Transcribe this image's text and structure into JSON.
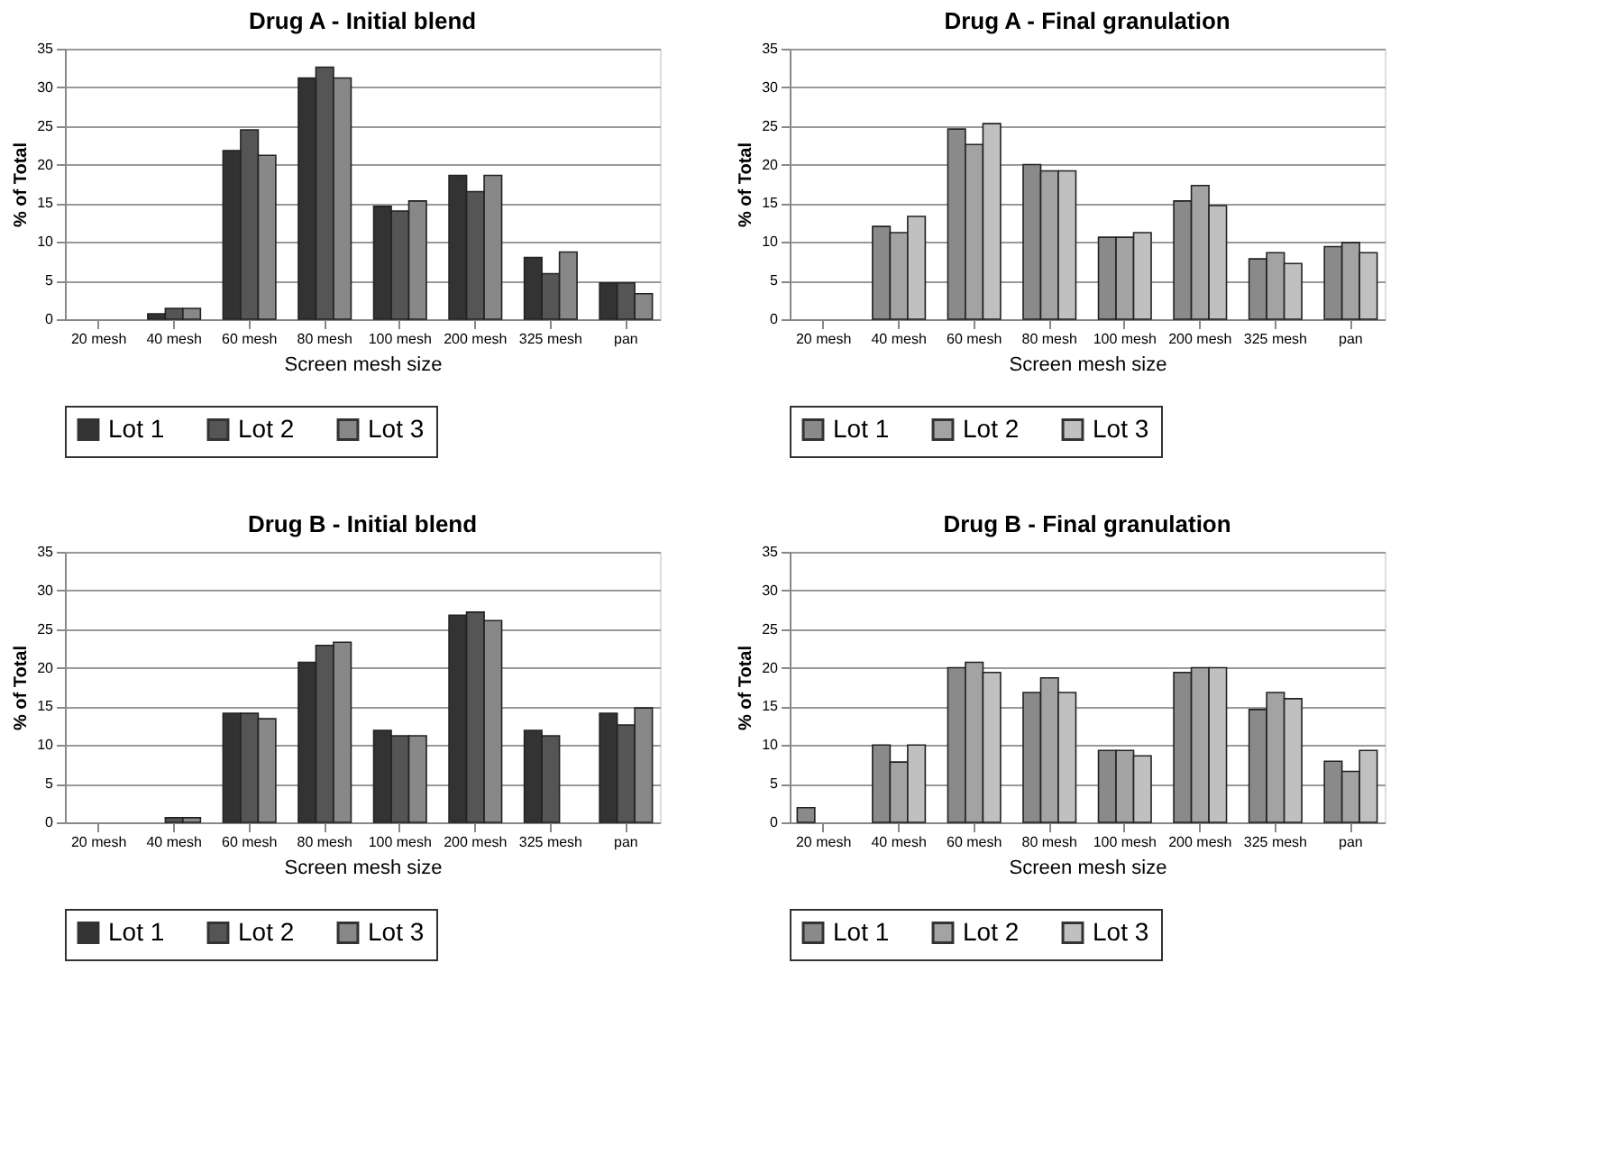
{
  "chart_data": [
    {
      "type": "bar",
      "title": "Drug A - Initial blend",
      "xlabel": "Screen mesh size",
      "ylabel": "% of Total",
      "categories": [
        "20 mesh",
        "40 mesh",
        "60 mesh",
        "80 mesh",
        "100 mesh",
        "200 mesh",
        "325 mesh",
        "pan"
      ],
      "series": [
        {
          "name": "Lot 1",
          "color": "#333333",
          "values": [
            0,
            0.7,
            21.8,
            31.2,
            14.6,
            18.6,
            8.0,
            4.7
          ]
        },
        {
          "name": "Lot 2",
          "color": "#555555",
          "values": [
            0,
            1.4,
            24.5,
            32.6,
            14.0,
            16.5,
            5.9,
            4.7
          ]
        },
        {
          "name": "Lot 3",
          "color": "#888888",
          "values": [
            0,
            1.4,
            21.2,
            31.2,
            15.3,
            18.6,
            8.7,
            3.3
          ]
        }
      ],
      "ylim": [
        0,
        35
      ],
      "yticks": [
        0,
        5,
        10,
        15,
        20,
        25,
        30,
        35
      ],
      "grid": "y",
      "legend": "bottom"
    },
    {
      "type": "bar",
      "title": "Drug A - Final granulation",
      "xlabel": "Screen mesh size",
      "ylabel": "% of Total",
      "categories": [
        "20 mesh",
        "40 mesh",
        "60 mesh",
        "80 mesh",
        "100 mesh",
        "200 mesh",
        "325 mesh",
        "pan"
      ],
      "series": [
        {
          "name": "Lot 1",
          "color": "#8a8a8a",
          "values": [
            0,
            12.0,
            24.6,
            20.0,
            10.6,
            15.3,
            7.8,
            9.4
          ]
        },
        {
          "name": "Lot 2",
          "color": "#a3a3a3",
          "values": [
            0,
            11.2,
            22.6,
            19.2,
            10.6,
            17.3,
            8.6,
            9.9
          ]
        },
        {
          "name": "Lot 3",
          "color": "#c0c0c0",
          "values": [
            0,
            13.3,
            25.3,
            19.2,
            11.2,
            14.7,
            7.2,
            8.6
          ]
        }
      ],
      "ylim": [
        0,
        35
      ],
      "yticks": [
        0,
        5,
        10,
        15,
        20,
        25,
        30,
        35
      ],
      "grid": "y",
      "legend": "bottom"
    },
    {
      "type": "bar",
      "title": "Drug B - Initial blend",
      "xlabel": "Screen mesh size",
      "ylabel": "% of Total",
      "categories": [
        "20 mesh",
        "40 mesh",
        "60 mesh",
        "80 mesh",
        "100 mesh",
        "200 mesh",
        "325 mesh",
        "pan"
      ],
      "series": [
        {
          "name": "Lot 1",
          "color": "#333333",
          "values": [
            0,
            0,
            14.1,
            20.7,
            11.9,
            26.8,
            11.9,
            14.1
          ]
        },
        {
          "name": "Lot 2",
          "color": "#555555",
          "values": [
            0,
            0.6,
            14.1,
            22.9,
            11.2,
            27.2,
            11.2,
            12.6
          ]
        },
        {
          "name": "Lot 3",
          "color": "#888888",
          "values": [
            0,
            0.6,
            13.4,
            23.3,
            11.2,
            26.1,
            null,
            14.8
          ]
        }
      ],
      "ylim": [
        0,
        35
      ],
      "yticks": [
        0,
        5,
        10,
        15,
        20,
        25,
        30,
        35
      ],
      "grid": "y",
      "legend": "bottom"
    },
    {
      "type": "bar",
      "title": "Drug B - Final granulation",
      "xlabel": "Screen mesh size",
      "ylabel": "% of Total",
      "categories": [
        "20 mesh",
        "40 mesh",
        "60 mesh",
        "80 mesh",
        "100 mesh",
        "200 mesh",
        "325 mesh",
        "pan"
      ],
      "series": [
        {
          "name": "Lot 1",
          "color": "#8a8a8a",
          "values": [
            1.9,
            10.0,
            20.0,
            16.8,
            9.3,
            19.4,
            14.6,
            7.9
          ]
        },
        {
          "name": "Lot 2",
          "color": "#a3a3a3",
          "values": [
            null,
            7.8,
            20.7,
            18.7,
            9.3,
            20.0,
            16.8,
            6.6
          ]
        },
        {
          "name": "Lot 3",
          "color": "#c0c0c0",
          "values": [
            null,
            10.0,
            19.4,
            16.8,
            8.6,
            20.0,
            16.0,
            9.3
          ]
        }
      ],
      "ylim": [
        0,
        35
      ],
      "yticks": [
        0,
        5,
        10,
        15,
        20,
        25,
        30,
        35
      ],
      "grid": "y",
      "legend": "bottom"
    }
  ]
}
